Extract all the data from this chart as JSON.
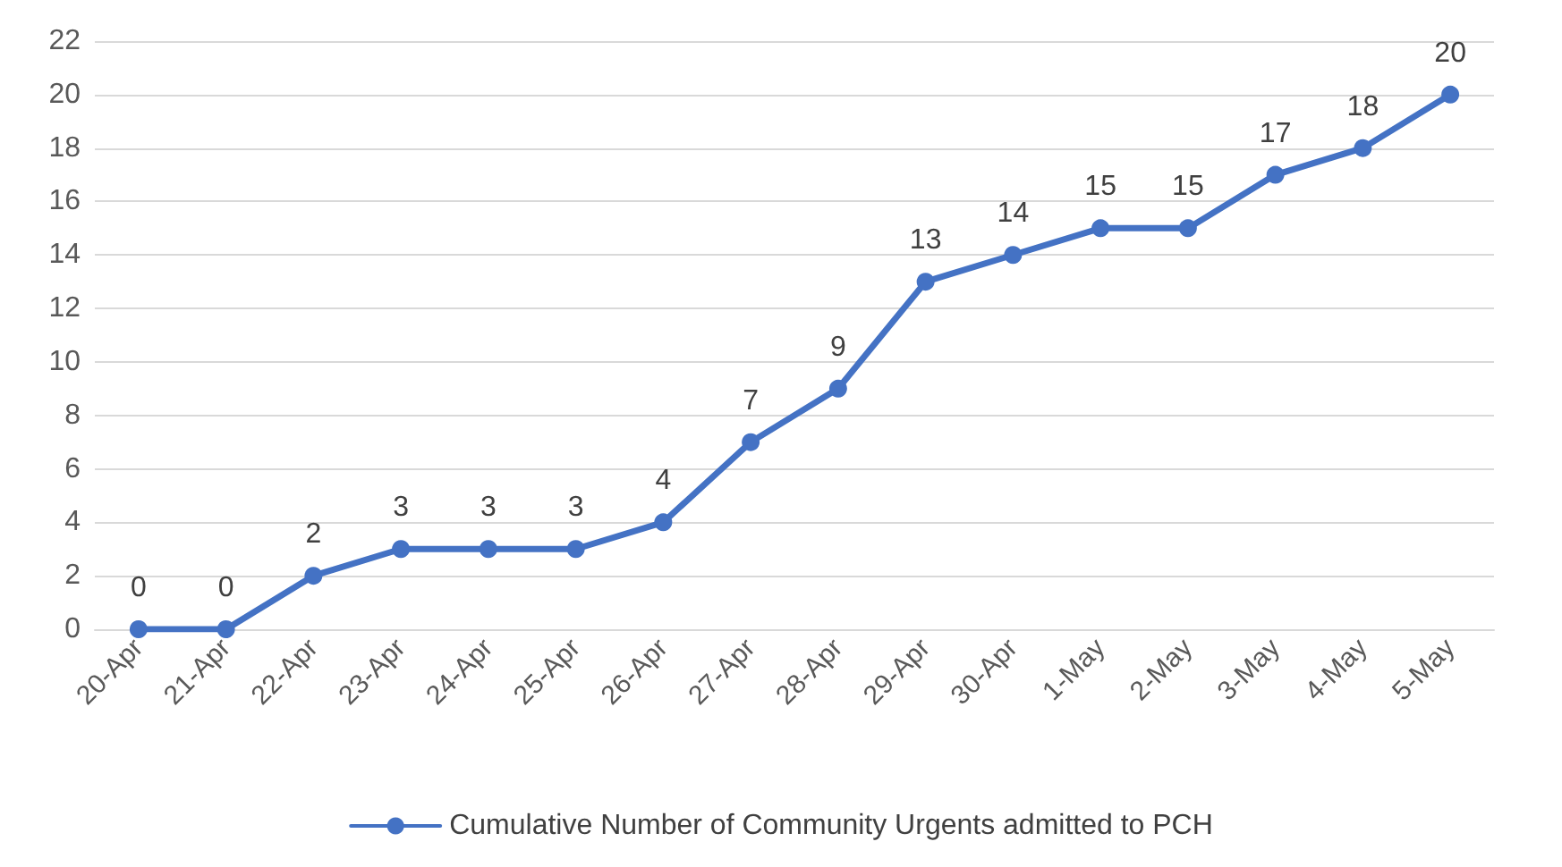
{
  "chart_data": {
    "type": "line",
    "categories": [
      "20-Apr",
      "21-Apr",
      "22-Apr",
      "23-Apr",
      "24-Apr",
      "25-Apr",
      "26-Apr",
      "27-Apr",
      "28-Apr",
      "29-Apr",
      "30-Apr",
      "1-May",
      "2-May",
      "3-May",
      "4-May",
      "5-May"
    ],
    "series": [
      {
        "name": "Cumulative Number of Community Urgents admitted to PCH",
        "color": "#4472c4",
        "values": [
          0,
          0,
          2,
          3,
          3,
          3,
          4,
          7,
          9,
          13,
          14,
          15,
          15,
          17,
          18,
          20
        ]
      }
    ],
    "ylim": [
      0,
      22
    ],
    "yticks": [
      0,
      2,
      4,
      6,
      8,
      10,
      12,
      14,
      16,
      18,
      20,
      22
    ],
    "grid": "y",
    "legend": "bottom",
    "marker": "circle",
    "line_style": "solid",
    "data_labels": true
  }
}
